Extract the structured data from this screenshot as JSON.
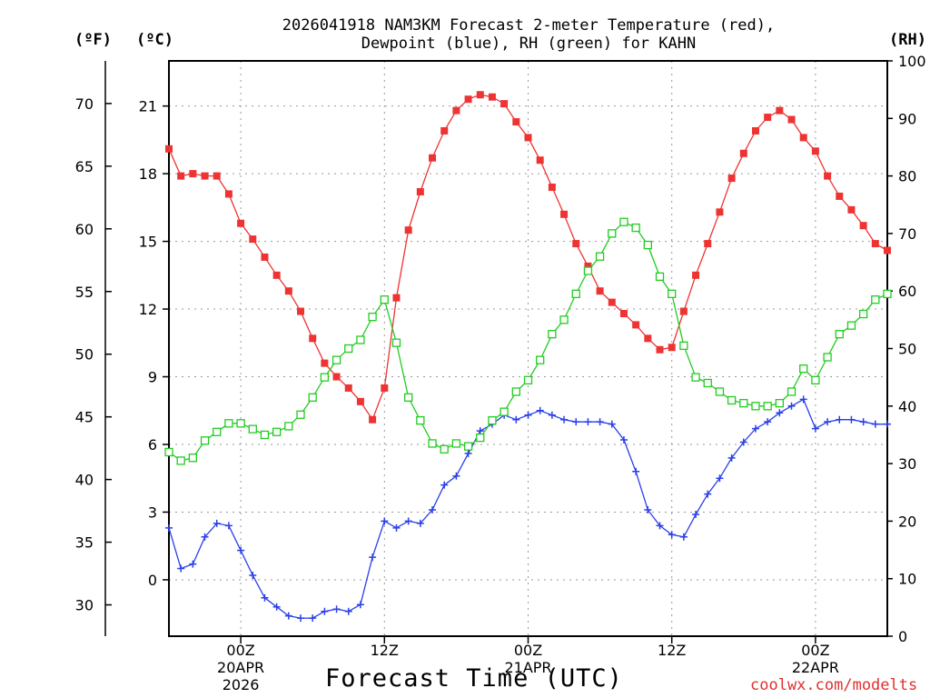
{
  "title_line1": "2026041918 NAM3KM Forecast 2-meter Temperature (red),",
  "title_line2": "Dewpoint (blue), RH (green) for KAHN",
  "units": {
    "fahrenheit": "(ºF)",
    "celsius": "(ºC)",
    "rh": "(RH)"
  },
  "xlabel": "Forecast Time (UTC)",
  "credit": "coolwx.com/modelts",
  "colors": {
    "temperature": "#ee3333",
    "dewpoint": "#2a3fe8",
    "rh": "#22cc22",
    "grid": "#999999"
  },
  "chart_data": {
    "type": "line",
    "title": "2026041918 NAM3KM Forecast 2-meter Temperature (red), Dewpoint (blue), RH (green) for KAHN",
    "x_units": "forecast hour (0 = 2026-04-19 18Z)",
    "x": [
      0,
      1,
      2,
      3,
      4,
      5,
      6,
      7,
      8,
      9,
      10,
      11,
      12,
      13,
      14,
      15,
      16,
      17,
      18,
      19,
      20,
      21,
      22,
      23,
      24,
      25,
      26,
      27,
      28,
      29,
      30,
      31,
      32,
      33,
      34,
      35,
      36,
      37,
      38,
      39,
      40,
      41,
      42,
      43,
      44,
      45,
      46,
      47,
      48,
      49,
      50,
      51,
      52,
      53,
      54,
      55,
      56,
      57,
      58,
      59,
      60
    ],
    "xlim": [
      0,
      60
    ],
    "x_ticks": [
      {
        "hour": 6,
        "lines": [
          "00Z",
          "20APR",
          "2026"
        ]
      },
      {
        "hour": 18,
        "lines": [
          "12Z"
        ]
      },
      {
        "hour": 30,
        "lines": [
          "00Z",
          "21APR"
        ]
      },
      {
        "hour": 42,
        "lines": [
          "12Z"
        ]
      },
      {
        "hour": 54,
        "lines": [
          "00Z",
          "22APR"
        ]
      }
    ],
    "axes": {
      "celsius": {
        "label": "(ºC)",
        "ylim": [
          -2.5,
          23
        ],
        "ticks": [
          0,
          3,
          6,
          9,
          12,
          15,
          18,
          21
        ]
      },
      "fahrenheit": {
        "label": "(ºF)",
        "ticks": [
          30,
          35,
          40,
          45,
          50,
          55,
          60,
          65,
          70
        ]
      },
      "rh": {
        "label": "(RH)",
        "ylim": [
          0,
          100
        ],
        "ticks": [
          0,
          10,
          20,
          30,
          40,
          50,
          60,
          70,
          80,
          90,
          100
        ]
      }
    },
    "grid": true,
    "series": [
      {
        "name": "Temperature",
        "axis": "celsius",
        "color": "#ee3333",
        "marker": "filled-square",
        "values": [
          19.1,
          17.9,
          18.0,
          17.9,
          17.9,
          17.1,
          15.8,
          15.1,
          14.3,
          13.5,
          12.8,
          11.9,
          10.7,
          9.6,
          9.0,
          8.5,
          7.9,
          7.1,
          8.5,
          12.5,
          15.5,
          17.2,
          18.7,
          19.9,
          20.8,
          21.3,
          21.5,
          21.4,
          21.1,
          20.3,
          19.6,
          18.6,
          17.4,
          16.2,
          14.9,
          13.9,
          12.8,
          12.3,
          11.8,
          11.3,
          10.7,
          10.2,
          10.3,
          11.9,
          13.5,
          14.9,
          16.3,
          17.8,
          18.9,
          19.9,
          20.5,
          20.8,
          20.4,
          19.6,
          19.0,
          17.9,
          17.0,
          16.4,
          15.7,
          14.9,
          14.6
        ]
      },
      {
        "name": "Dewpoint",
        "axis": "celsius",
        "color": "#2a3fe8",
        "marker": "plus",
        "values": [
          2.3,
          0.5,
          0.7,
          1.9,
          2.5,
          2.4,
          1.3,
          0.2,
          -0.8,
          -1.2,
          -1.6,
          -1.7,
          -1.7,
          -1.4,
          -1.3,
          -1.4,
          -1.1,
          1.0,
          2.6,
          2.3,
          2.6,
          2.5,
          3.1,
          4.2,
          4.6,
          5.6,
          6.6,
          6.9,
          7.3,
          7.1,
          7.3,
          7.5,
          7.3,
          7.1,
          7.0,
          7.0,
          7.0,
          6.9,
          6.2,
          4.8,
          3.1,
          2.4,
          2.0,
          1.9,
          2.9,
          3.8,
          4.5,
          5.4,
          6.1,
          6.7,
          7.0,
          7.4,
          7.7,
          8.0,
          6.7,
          7.0,
          7.1,
          7.1,
          7.0,
          6.9,
          6.9
        ]
      },
      {
        "name": "RH",
        "axis": "rh",
        "color": "#22cc22",
        "marker": "open-square",
        "values": [
          32,
          30.5,
          31,
          34,
          35.5,
          37,
          37,
          36,
          35,
          35.5,
          36.5,
          38.5,
          41.5,
          45,
          48,
          50,
          51.5,
          55.5,
          58.5,
          51,
          41.5,
          37.5,
          33.5,
          32.5,
          33.5,
          33,
          34.5,
          37.5,
          39,
          42.5,
          44.5,
          48,
          52.5,
          55,
          59.5,
          63.5,
          66,
          70,
          72,
          71,
          68,
          62.5,
          59.5,
          50.5,
          45,
          44,
          42.5,
          41,
          40.5,
          40,
          40,
          40.5,
          42.5,
          46.5,
          44.5,
          48.5,
          52.5,
          54,
          56,
          58.5,
          59.5
        ]
      }
    ]
  }
}
